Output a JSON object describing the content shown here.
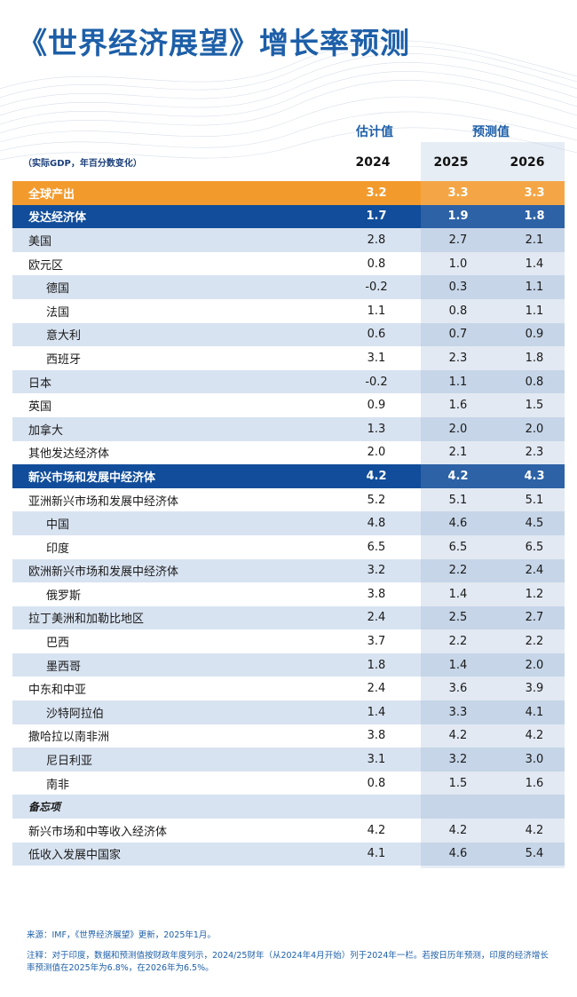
{
  "title": "《世界经济展望》增长率预测",
  "subhead": "（实际GDP，年百分数变化）",
  "headers": {
    "estimate": "估计值",
    "projection": "预测值",
    "years": [
      "2024",
      "2025",
      "2026"
    ]
  },
  "rows": [
    {
      "name": "全球产出",
      "type": "world",
      "v": [
        "3.2",
        "3.3",
        "3.3"
      ]
    },
    {
      "name": "发达经济体",
      "type": "group",
      "v": [
        "1.7",
        "1.9",
        "1.8"
      ]
    },
    {
      "name": "美国",
      "type": "top",
      "v": [
        "2.8",
        "2.7",
        "2.1"
      ]
    },
    {
      "name": "欧元区",
      "type": "top",
      "v": [
        "0.8",
        "1.0",
        "1.4"
      ]
    },
    {
      "name": "德国",
      "type": "sub",
      "v": [
        "-0.2",
        "0.3",
        "1.1"
      ]
    },
    {
      "name": "法国",
      "type": "sub",
      "v": [
        "1.1",
        "0.8",
        "1.1"
      ]
    },
    {
      "name": "意大利",
      "type": "sub",
      "v": [
        "0.6",
        "0.7",
        "0.9"
      ]
    },
    {
      "name": "西班牙",
      "type": "sub",
      "v": [
        "3.1",
        "2.3",
        "1.8"
      ]
    },
    {
      "name": "日本",
      "type": "top",
      "v": [
        "-0.2",
        "1.1",
        "0.8"
      ]
    },
    {
      "name": "英国",
      "type": "top",
      "v": [
        "0.9",
        "1.6",
        "1.5"
      ]
    },
    {
      "name": "加拿大",
      "type": "top",
      "v": [
        "1.3",
        "2.0",
        "2.0"
      ]
    },
    {
      "name": "其他发达经济体",
      "type": "top",
      "v": [
        "2.0",
        "2.1",
        "2.3"
      ]
    },
    {
      "name": "新兴市场和发展中经济体",
      "type": "group",
      "v": [
        "4.2",
        "4.2",
        "4.3"
      ]
    },
    {
      "name": "亚洲新兴市场和发展中经济体",
      "type": "top",
      "v": [
        "5.2",
        "5.1",
        "5.1"
      ]
    },
    {
      "name": "中国",
      "type": "sub",
      "v": [
        "4.8",
        "4.6",
        "4.5"
      ]
    },
    {
      "name": "印度",
      "type": "sub",
      "v": [
        "6.5",
        "6.5",
        "6.5"
      ]
    },
    {
      "name": "欧洲新兴市场和发展中经济体",
      "type": "top",
      "v": [
        "3.2",
        "2.2",
        "2.4"
      ]
    },
    {
      "name": "俄罗斯",
      "type": "sub",
      "v": [
        "3.8",
        "1.4",
        "1.2"
      ]
    },
    {
      "name": "拉丁美洲和加勒比地区",
      "type": "top",
      "v": [
        "2.4",
        "2.5",
        "2.7"
      ]
    },
    {
      "name": "巴西",
      "type": "sub",
      "v": [
        "3.7",
        "2.2",
        "2.2"
      ]
    },
    {
      "name": "墨西哥",
      "type": "sub",
      "v": [
        "1.8",
        "1.4",
        "2.0"
      ]
    },
    {
      "name": "中东和中亚",
      "type": "top",
      "v": [
        "2.4",
        "3.6",
        "3.9"
      ]
    },
    {
      "name": "沙特阿拉伯",
      "type": "sub",
      "v": [
        "1.4",
        "3.3",
        "4.1"
      ]
    },
    {
      "name": "撒哈拉以南非洲",
      "type": "top",
      "v": [
        "3.8",
        "4.2",
        "4.2"
      ]
    },
    {
      "name": "尼日利亚",
      "type": "sub",
      "v": [
        "3.1",
        "3.2",
        "3.0"
      ]
    },
    {
      "name": "南非",
      "type": "sub",
      "v": [
        "0.8",
        "1.5",
        "1.6"
      ]
    },
    {
      "name": "备忘项",
      "type": "memo",
      "v": [
        "",
        "",
        ""
      ]
    },
    {
      "name": "新兴市场和中等收入经济体",
      "type": "top",
      "v": [
        "4.2",
        "4.2",
        "4.2"
      ]
    },
    {
      "name": "低收入发展中国家",
      "type": "top",
      "v": [
        "4.1",
        "4.6",
        "5.4"
      ]
    }
  ],
  "source": "来源：IMF，《世界经济展望》更新，2025年1月。",
  "note": "注释：对于印度，数据和预测值按财政年度列示，2024/25财年（从2024年4月开始）列于2024年一栏。若按日历年预测，印度的经济增长率预测值在2025年为6.8%，在2026年为6.5%。",
  "colors": {
    "title": "#1d5fa8",
    "world": "#f39a2d",
    "group": "#114d9a",
    "band": "#d8e3f1"
  }
}
